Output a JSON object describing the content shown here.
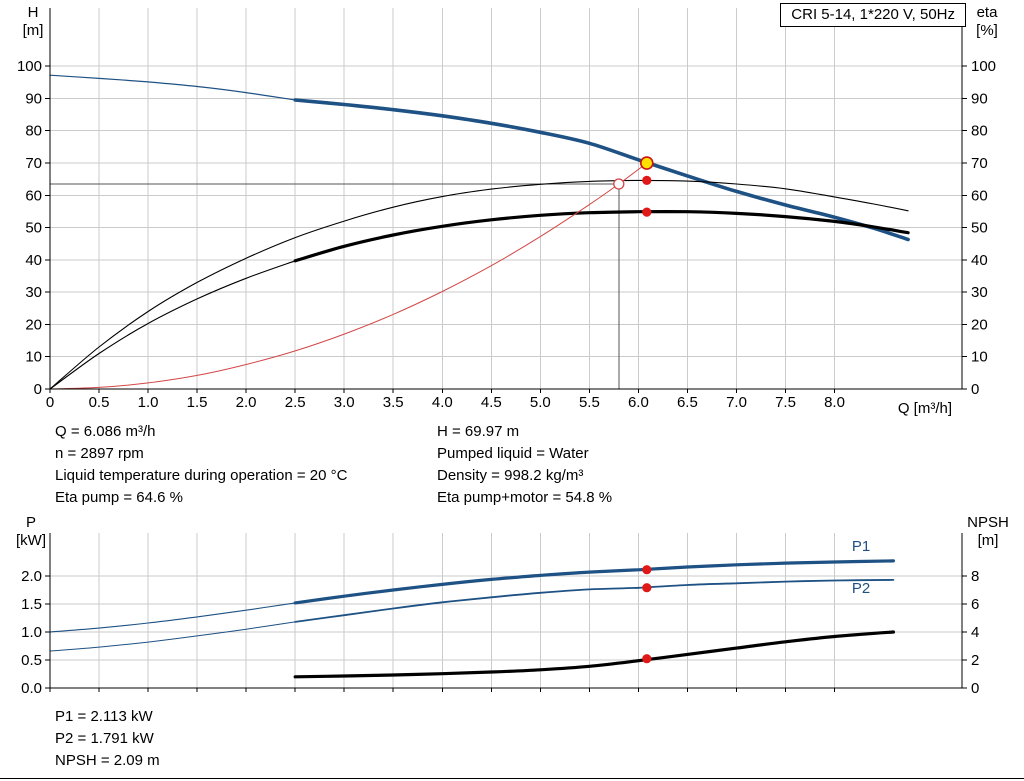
{
  "title_box": "CRI 5-14, 1*220 V, 50Hz",
  "info_top": {
    "left": [
      "Q = 6.086 m³/h",
      "n = 2897 rpm",
      "Liquid temperature during operation = 20 °C",
      "Eta pump = 64.6 %"
    ],
    "right": [
      "H = 69.97 m",
      "Pumped liquid = Water",
      "Density = 998.2 kg/m³",
      "Eta pump+motor = 54.8 %"
    ]
  },
  "info_bottom": [
    "P1 = 2.113 kW",
    "P2 = 1.791 kW",
    "NPSH = 2.09 m"
  ],
  "colors": {
    "pump_blue": "#1e5184",
    "marker_red": "#e01818",
    "duty_yellow": "#ffe100",
    "system_red": "#d24747",
    "grid_gray": "#cbcbcb"
  },
  "chart_data": [
    {
      "type": "line",
      "name": "qh-eta-chart",
      "grid_color": "#cbcbcb",
      "axes": {
        "x": {
          "label": "Q [m³/h]",
          "min": 0,
          "max": 9.3,
          "ticks": [
            0,
            0.5,
            1,
            1.5,
            2,
            2.5,
            3,
            3.5,
            4,
            4.5,
            5,
            5.5,
            6,
            6.5,
            7,
            7.5,
            8
          ],
          "tick_labels": [
            "0",
            "0.5",
            "1.0",
            "1.5",
            "2.0",
            "2.5",
            "3.0",
            "3.5",
            "4.0",
            "4.5",
            "5.0",
            "5.5",
            "6.0",
            "6.5",
            "7.0",
            "7.5",
            "8.0"
          ]
        },
        "left": {
          "label": [
            "H",
            "[m]"
          ],
          "min": 0,
          "max": 118,
          "ticks": [
            0,
            10,
            20,
            30,
            40,
            50,
            60,
            70,
            80,
            90,
            100
          ],
          "tick_labels": [
            "0",
            "10",
            "20",
            "30",
            "40",
            "50",
            "60",
            "70",
            "80",
            "90",
            "100"
          ]
        },
        "right": {
          "label": [
            "eta",
            "[%]"
          ],
          "min": 0,
          "max": 118,
          "ticks": [
            0,
            10,
            20,
            30,
            40,
            50,
            60,
            70,
            80,
            90,
            100
          ],
          "tick_labels": [
            "0",
            "10",
            "20",
            "30",
            "40",
            "50",
            "60",
            "70",
            "80",
            "90",
            "100"
          ]
        }
      },
      "ref_lines": [
        {
          "type": "h",
          "v": 63.5,
          "x1": 0,
          "x2": 5.8,
          "color": "#555555",
          "width": 1
        },
        {
          "type": "v",
          "x": 5.8,
          "v1": 0,
          "v2": 63.5,
          "color": "#555555",
          "width": 1
        }
      ],
      "series": [
        {
          "name": "head-curve-lead",
          "axis": "left",
          "color": "#1e5184",
          "width": 1.2,
          "points": [
            [
              0,
              97.2
            ],
            [
              0.5,
              96.2
            ],
            [
              1,
              95.1
            ],
            [
              1.5,
              93.7
            ],
            [
              2,
              91.8
            ],
            [
              2.5,
              89.5
            ]
          ]
        },
        {
          "name": "head-curve",
          "axis": "left",
          "color": "#1e5184",
          "width": 3.6,
          "points": [
            [
              2.5,
              89.5
            ],
            [
              3,
              88.1
            ],
            [
              3.5,
              86.5
            ],
            [
              4,
              84.6
            ],
            [
              4.5,
              82.3
            ],
            [
              5,
              79.5
            ],
            [
              5.5,
              76.1
            ],
            [
              6,
              71
            ],
            [
              6.5,
              66
            ],
            [
              7,
              61.2
            ],
            [
              7.5,
              57
            ],
            [
              8,
              53.2
            ],
            [
              8.4,
              49.8
            ],
            [
              8.75,
              46.3
            ]
          ]
        },
        {
          "name": "eta-pump-curve",
          "axis": "right",
          "color": "#000000",
          "width": 1.1,
          "points": [
            [
              0,
              0
            ],
            [
              0.5,
              13
            ],
            [
              1,
              24
            ],
            [
              1.5,
              33
            ],
            [
              2,
              40.5
            ],
            [
              2.5,
              46.9
            ],
            [
              3,
              52
            ],
            [
              3.5,
              56.3
            ],
            [
              4,
              59.6
            ],
            [
              4.5,
              61.9
            ],
            [
              5,
              63.4
            ],
            [
              5.5,
              64.3
            ],
            [
              6,
              64.6
            ],
            [
              6.5,
              64.4
            ],
            [
              7,
              63.5
            ],
            [
              7.5,
              62
            ],
            [
              8,
              59.5
            ],
            [
              8.4,
              57.3
            ],
            [
              8.75,
              55.2
            ]
          ]
        },
        {
          "name": "eta-pump-motor-curve-lead",
          "axis": "right",
          "color": "#000000",
          "width": 1.1,
          "points": [
            [
              0,
              0
            ],
            [
              0.5,
              11
            ],
            [
              1,
              20.3
            ],
            [
              1.5,
              27.9
            ],
            [
              2,
              34.3
            ],
            [
              2.5,
              39.7
            ]
          ]
        },
        {
          "name": "eta-pump-motor-curve",
          "axis": "right",
          "color": "#000000",
          "width": 3.2,
          "points": [
            [
              2.5,
              39.7
            ],
            [
              3,
              44.2
            ],
            [
              3.5,
              47.7
            ],
            [
              4,
              50.4
            ],
            [
              4.5,
              52.4
            ],
            [
              5,
              53.8
            ],
            [
              5.5,
              54.6
            ],
            [
              6,
              54.9
            ],
            [
              6.5,
              54.9
            ],
            [
              7,
              54.4
            ],
            [
              7.5,
              53.4
            ],
            [
              8,
              51.9
            ],
            [
              8.4,
              50.2
            ],
            [
              8.75,
              48.4
            ]
          ]
        },
        {
          "name": "system-curve",
          "axis": "left",
          "color": "#d24747",
          "width": 1,
          "points": [
            [
              0,
              0
            ],
            [
              0.5,
              0.5
            ],
            [
              1,
              1.9
            ],
            [
              1.5,
              4.2
            ],
            [
              2,
              7.6
            ],
            [
              2.5,
              11.8
            ],
            [
              3,
              17
            ],
            [
              3.5,
              23.1
            ],
            [
              4,
              30.2
            ],
            [
              4.5,
              38.2
            ],
            [
              5,
              47.2
            ],
            [
              5.5,
              57.1
            ],
            [
              5.8,
              63.5
            ],
            [
              6.086,
              69.97
            ]
          ]
        }
      ],
      "markers": [
        {
          "name": "requested-duty-point",
          "x": 5.8,
          "v": 63.5,
          "axis": "left",
          "r": 5,
          "fill": "#ffffff",
          "stroke": "#d24747",
          "stroke_width": 1.3
        },
        {
          "name": "operating-point",
          "x": 6.086,
          "v": 69.97,
          "axis": "left",
          "r": 6,
          "fill": "#ffe100",
          "stroke": "#cc1111",
          "stroke_width": 1.6
        },
        {
          "name": "eta-pump-duty-point",
          "x": 6.086,
          "v": 64.6,
          "axis": "right",
          "r": 4.6,
          "fill": "#e01818",
          "stroke": "none",
          "stroke_width": 0
        },
        {
          "name": "eta-pump-motor-duty-point",
          "x": 6.086,
          "v": 54.8,
          "axis": "right",
          "r": 4.6,
          "fill": "#e01818",
          "stroke": "none",
          "stroke_width": 0
        }
      ]
    },
    {
      "type": "line",
      "name": "power-npsh-chart",
      "grid_color": "#cbcbcb",
      "axes": {
        "x": {
          "label": "",
          "min": 0,
          "max": 9.3,
          "ticks": [
            0,
            0.5,
            1,
            1.5,
            2,
            2.5,
            3,
            3.5,
            4,
            4.5,
            5,
            5.5,
            6,
            6.5,
            7,
            7.5,
            8
          ],
          "tick_labels": []
        },
        "left": {
          "label": [
            "P",
            "[kW]"
          ],
          "min": 0,
          "max": 2.768,
          "ticks": [
            0,
            0.5,
            1,
            1.5,
            2
          ],
          "tick_labels": [
            "0.0",
            "0.5",
            "1.0",
            "1.5",
            "2.0"
          ]
        },
        "right": {
          "label": [
            "NPSH",
            "[m]"
          ],
          "min": 0,
          "max": 11.07,
          "ticks": [
            0,
            2,
            4,
            6,
            8
          ],
          "tick_labels": [
            "0",
            "2",
            "4",
            "6",
            "8"
          ]
        }
      },
      "series": [
        {
          "name": "p1-curve-lead",
          "axis": "left",
          "color": "#1e5184",
          "width": 1.1,
          "points": [
            [
              0,
              1.0
            ],
            [
              0.5,
              1.07
            ],
            [
              1,
              1.16
            ],
            [
              1.5,
              1.27
            ],
            [
              2,
              1.39
            ],
            [
              2.5,
              1.52
            ]
          ]
        },
        {
          "name": "p1-curve",
          "axis": "left",
          "color": "#1e5184",
          "width": 3.2,
          "points": [
            [
              2.5,
              1.52
            ],
            [
              3,
              1.64
            ],
            [
              3.5,
              1.75
            ],
            [
              4,
              1.85
            ],
            [
              4.5,
              1.94
            ],
            [
              5,
              2.01
            ],
            [
              5.5,
              2.07
            ],
            [
              6,
              2.11
            ],
            [
              6.5,
              2.16
            ],
            [
              7,
              2.2
            ],
            [
              7.5,
              2.23
            ],
            [
              8,
              2.25
            ],
            [
              8.6,
              2.27
            ]
          ]
        },
        {
          "name": "p2-curve-lead",
          "axis": "left",
          "color": "#1e5184",
          "width": 1,
          "points": [
            [
              0,
              0.66
            ],
            [
              0.5,
              0.73
            ],
            [
              1,
              0.82
            ],
            [
              1.5,
              0.93
            ],
            [
              2,
              1.05
            ],
            [
              2.5,
              1.18
            ]
          ]
        },
        {
          "name": "p2-curve",
          "axis": "left",
          "color": "#1e5184",
          "width": 1.8,
          "points": [
            [
              2.5,
              1.18
            ],
            [
              3,
              1.3
            ],
            [
              3.5,
              1.42
            ],
            [
              4,
              1.53
            ],
            [
              4.5,
              1.62
            ],
            [
              5,
              1.7
            ],
            [
              5.5,
              1.76
            ],
            [
              6,
              1.79
            ],
            [
              6.5,
              1.84
            ],
            [
              7,
              1.87
            ],
            [
              7.5,
              1.9
            ],
            [
              8,
              1.92
            ],
            [
              8.6,
              1.93
            ]
          ]
        },
        {
          "name": "npsh-curve",
          "axis": "right",
          "color": "#000000",
          "width": 3.2,
          "points": [
            [
              2.5,
              0.8
            ],
            [
              3,
              0.86
            ],
            [
              3.5,
              0.93
            ],
            [
              4,
              1.02
            ],
            [
              4.5,
              1.14
            ],
            [
              5,
              1.3
            ],
            [
              5.5,
              1.55
            ],
            [
              6,
              1.95
            ],
            [
              6.5,
              2.4
            ],
            [
              7,
              2.85
            ],
            [
              7.5,
              3.3
            ],
            [
              8,
              3.68
            ],
            [
              8.6,
              4.0
            ]
          ]
        }
      ],
      "markers": [
        {
          "name": "p1-duty-point",
          "x": 6.086,
          "v": 2.113,
          "axis": "left",
          "r": 4.6,
          "fill": "#e01818",
          "stroke": "none",
          "stroke_width": 0
        },
        {
          "name": "p2-duty-point",
          "x": 6.086,
          "v": 1.791,
          "axis": "left",
          "r": 4.6,
          "fill": "#e01818",
          "stroke": "none",
          "stroke_width": 0
        },
        {
          "name": "npsh-duty-point",
          "x": 6.086,
          "v": 2.09,
          "axis": "right",
          "r": 4.6,
          "fill": "#e01818",
          "stroke": "none",
          "stroke_width": 0
        }
      ],
      "curve_labels": [
        {
          "text": "P1",
          "x": 8.27,
          "v": 2.45,
          "axis": "left",
          "color": "#1e5184"
        },
        {
          "text": "P2",
          "x": 8.27,
          "v": 1.7,
          "axis": "left",
          "color": "#1e5184"
        }
      ]
    }
  ]
}
